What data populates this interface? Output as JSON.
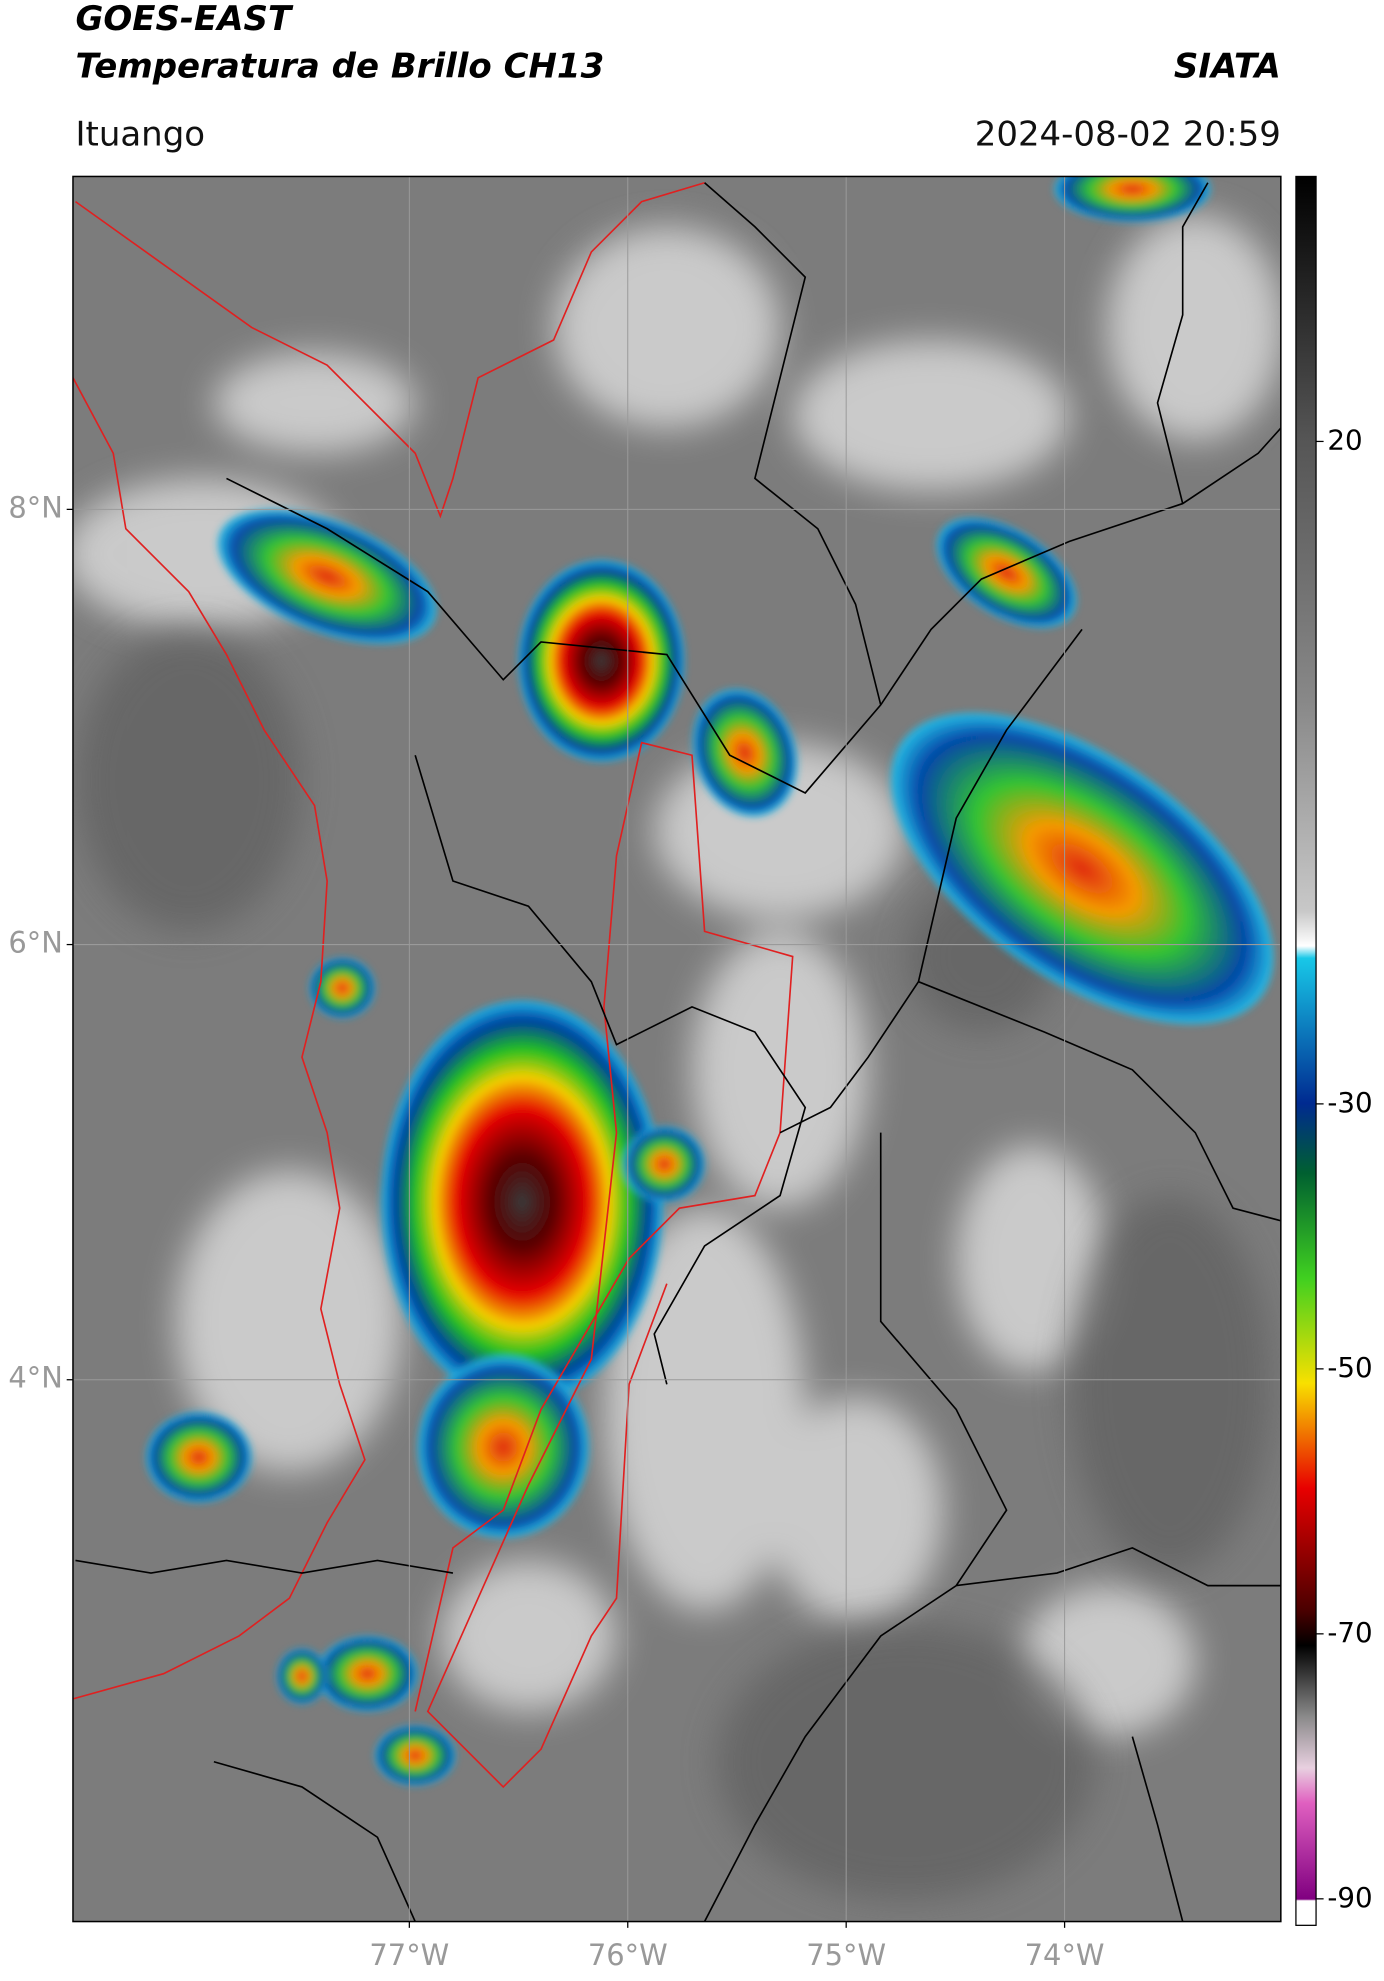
{
  "header": {
    "title": "GOES-EAST",
    "subtitle": "Temperatura de Brillo CH13",
    "source": "SIATA",
    "location": "Ituango",
    "datetime": "2024-08-02 20:59"
  },
  "map": {
    "xlim": [
      -78.54,
      -73.01
    ],
    "ylim": [
      1.51,
      9.53
    ],
    "xticks": [
      {
        "value": -77,
        "label": "77°W"
      },
      {
        "value": -76,
        "label": "76°W"
      },
      {
        "value": -75,
        "label": "75°W"
      },
      {
        "value": -74,
        "label": "74°W"
      }
    ],
    "yticks": [
      {
        "value": 8,
        "label": "8°N"
      },
      {
        "value": 6,
        "label": "6°N"
      },
      {
        "value": 4,
        "label": "4°N"
      }
    ]
  },
  "colorbar": {
    "clim": [
      -92,
      40
    ],
    "ticks": [
      20,
      -30,
      -50,
      -70,
      -90
    ]
  }
}
